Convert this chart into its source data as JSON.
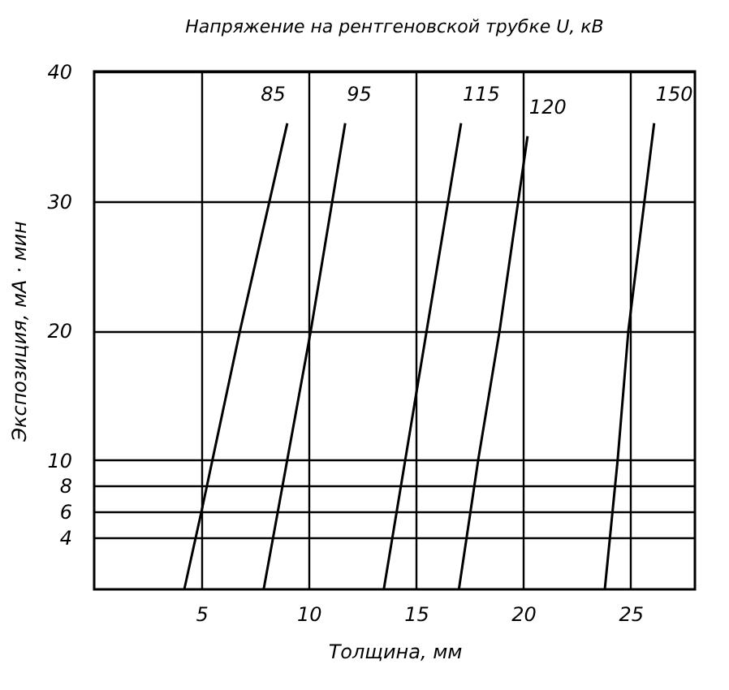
{
  "chart_data": {
    "type": "line",
    "title": "Напряжение на рентгеновской трубке U, кВ",
    "xlabel": "Толщина, мм",
    "ylabel": "Экспозиция, мА · мин",
    "xlim": [
      0,
      28
    ],
    "xticks": [
      5,
      10,
      15,
      20,
      25
    ],
    "ylim": [
      0,
      40
    ],
    "yticks": [
      4,
      6,
      8,
      10,
      20,
      30,
      40
    ],
    "grid": true,
    "marker": "none",
    "line_style": "solid",
    "series": [
      {
        "name": "85",
        "color": "#000000",
        "x": [
          4.2,
          5.0,
          6.8,
          9.0
        ],
        "values": [
          0,
          6,
          20,
          36
        ]
      },
      {
        "name": "95",
        "color": "#000000",
        "x": [
          7.9,
          9.0,
          10.1,
          11.7
        ],
        "values": [
          0,
          10,
          20,
          36
        ]
      },
      {
        "name": "115",
        "color": "#000000",
        "x": [
          13.5,
          14.5,
          15.5,
          17.1
        ],
        "values": [
          0,
          10,
          20,
          36
        ]
      },
      {
        "name": "120",
        "color": "#000000",
        "x": [
          17.0,
          17.9,
          18.9,
          20.2
        ],
        "values": [
          0,
          10,
          20,
          35
        ]
      },
      {
        "name": "150",
        "color": "#000000",
        "x": [
          23.8,
          24.4,
          24.9,
          26.1
        ],
        "values": [
          0,
          10,
          20,
          36
        ]
      }
    ]
  }
}
